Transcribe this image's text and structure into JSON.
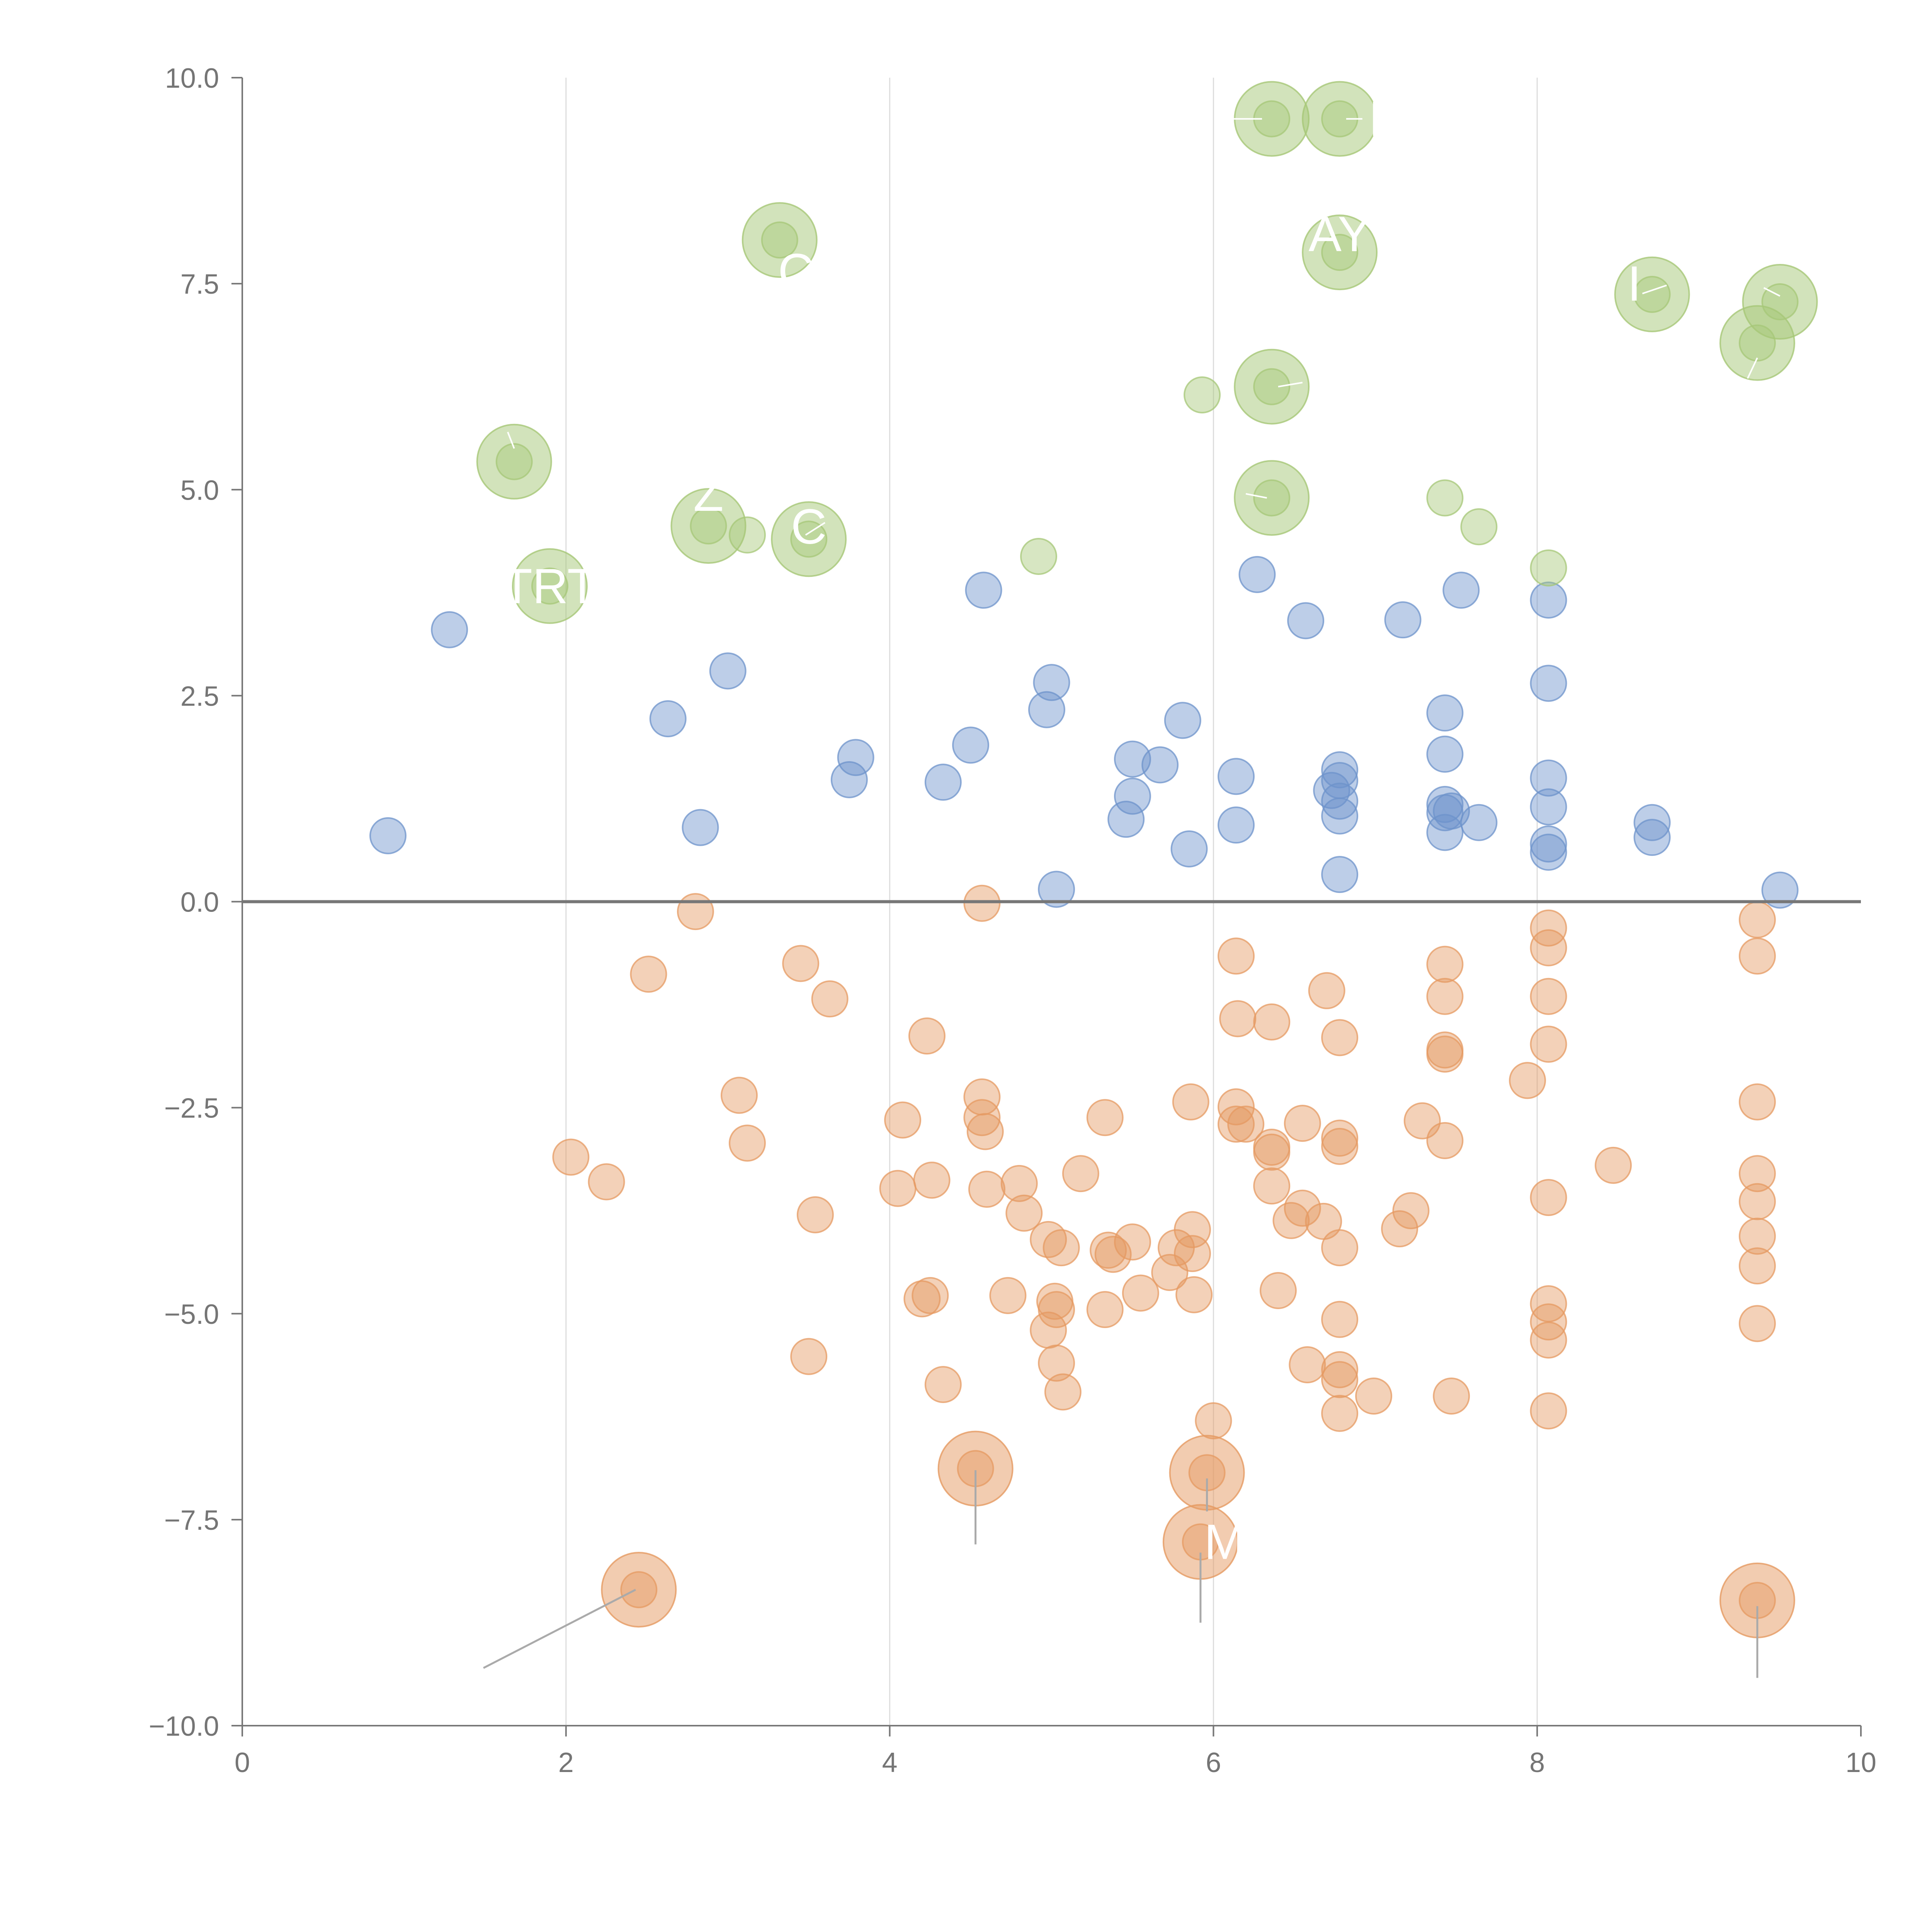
{
  "chart_data": {
    "type": "scatter",
    "title": "",
    "xlabel": "",
    "ylabel": "",
    "xlim": [
      0,
      10
    ],
    "ylim": [
      -10,
      10
    ],
    "x_ticks": [
      "0",
      "2",
      "4",
      "6",
      "8",
      "10"
    ],
    "y_ticks": [
      "−10.0",
      "−7.5",
      "−5.0",
      "−2.5",
      "0.0",
      "2.5",
      "5.0",
      "7.5",
      "10.0"
    ],
    "x_tick_values": [
      0,
      2,
      4,
      6,
      8,
      10
    ],
    "y_tick_values": [
      -10,
      -7.5,
      -5,
      -2.5,
      0,
      2.5,
      5,
      7.5,
      10
    ],
    "grid": "vertical lines at x ticks",
    "reference_line": {
      "y": 0
    },
    "legend": "none",
    "colors": {
      "blue": "#6d93cb",
      "green": "#a6c777",
      "orange": "#e59a61"
    },
    "series": [
      {
        "color": "blue",
        "points": [
          [
            0.9,
            0.8
          ],
          [
            1.28,
            3.3
          ],
          [
            2.63,
            2.22
          ],
          [
            2.83,
            0.9
          ],
          [
            3.0,
            2.8
          ],
          [
            3.75,
            1.48
          ],
          [
            3.79,
            1.75
          ],
          [
            4.33,
            1.45
          ],
          [
            4.5,
            1.9
          ],
          [
            4.58,
            3.78
          ],
          [
            4.97,
            2.33
          ],
          [
            5.0,
            2.66
          ],
          [
            5.03,
            0.15
          ],
          [
            5.46,
            1.0
          ],
          [
            5.5,
            1.28
          ],
          [
            5.5,
            1.73
          ],
          [
            5.67,
            1.66
          ],
          [
            5.81,
            2.2
          ],
          [
            5.85,
            0.64
          ],
          [
            6.14,
            1.52
          ],
          [
            6.14,
            0.93
          ],
          [
            6.27,
            3.97
          ],
          [
            6.57,
            3.41
          ],
          [
            6.73,
            1.35
          ],
          [
            6.78,
            1.6
          ],
          [
            6.78,
            1.47
          ],
          [
            6.78,
            1.22
          ],
          [
            6.78,
            1.04
          ],
          [
            6.78,
            0.33
          ],
          [
            7.17,
            3.42
          ],
          [
            7.43,
            2.29
          ],
          [
            7.43,
            1.79
          ],
          [
            7.43,
            1.18
          ],
          [
            7.43,
            1.08
          ],
          [
            7.43,
            0.84
          ],
          [
            7.47,
            1.1
          ],
          [
            7.53,
            3.78
          ],
          [
            7.64,
            0.96
          ],
          [
            8.07,
            3.66
          ],
          [
            8.07,
            2.65
          ],
          [
            8.07,
            1.5
          ],
          [
            8.07,
            1.15
          ],
          [
            8.07,
            0.7
          ],
          [
            8.07,
            0.6
          ],
          [
            8.71,
            0.96
          ],
          [
            8.71,
            0.78
          ],
          [
            9.5,
            0.14
          ]
        ]
      },
      {
        "color": "green",
        "points": [
          [
            1.68,
            5.34
          ],
          [
            1.9,
            3.83
          ],
          [
            2.88,
            4.56
          ],
          [
            3.12,
            4.45
          ],
          [
            3.32,
            8.03
          ],
          [
            3.5,
            4.4
          ],
          [
            4.92,
            4.19
          ],
          [
            5.93,
            6.15
          ],
          [
            6.36,
            9.5
          ],
          [
            6.36,
            6.25
          ],
          [
            6.36,
            4.9
          ],
          [
            6.78,
            9.5
          ],
          [
            6.78,
            7.88
          ],
          [
            7.43,
            4.9
          ],
          [
            7.64,
            4.55
          ],
          [
            8.07,
            4.05
          ],
          [
            8.71,
            7.37
          ],
          [
            9.36,
            6.78
          ],
          [
            9.5,
            7.28
          ]
        ]
      },
      {
        "color": "orange",
        "points": [
          [
            2.03,
            -3.1
          ],
          [
            2.25,
            -3.4
          ],
          [
            2.51,
            -0.88
          ],
          [
            2.45,
            -8.35
          ],
          [
            2.8,
            -0.12
          ],
          [
            3.07,
            -2.35
          ],
          [
            3.12,
            -2.93
          ],
          [
            3.45,
            -0.75
          ],
          [
            3.5,
            -5.52
          ],
          [
            3.54,
            -3.8
          ],
          [
            3.63,
            -1.18
          ],
          [
            4.05,
            -3.48
          ],
          [
            4.08,
            -2.65
          ],
          [
            4.2,
            -4.82
          ],
          [
            4.23,
            -1.63
          ],
          [
            4.25,
            -4.78
          ],
          [
            4.26,
            -3.38
          ],
          [
            4.33,
            -5.86
          ],
          [
            4.53,
            -6.88
          ],
          [
            4.57,
            -0.02
          ],
          [
            4.57,
            -2.37
          ],
          [
            4.57,
            -2.62
          ],
          [
            4.59,
            -2.79
          ],
          [
            4.6,
            -3.49
          ],
          [
            4.73,
            -4.78
          ],
          [
            4.8,
            -3.42
          ],
          [
            4.83,
            -3.78
          ],
          [
            4.98,
            -4.1
          ],
          [
            4.98,
            -5.2
          ],
          [
            5.02,
            -4.85
          ],
          [
            5.03,
            -4.95
          ],
          [
            5.03,
            -5.6
          ],
          [
            5.06,
            -4.2
          ],
          [
            5.07,
            -5.95
          ],
          [
            5.18,
            -3.3
          ],
          [
            5.33,
            -2.62
          ],
          [
            5.33,
            -4.95
          ],
          [
            5.35,
            -4.23
          ],
          [
            5.38,
            -4.28
          ],
          [
            5.5,
            -4.13
          ],
          [
            5.55,
            -4.75
          ],
          [
            5.73,
            -4.5
          ],
          [
            5.77,
            -4.2
          ],
          [
            5.86,
            -2.43
          ],
          [
            5.87,
            -3.98
          ],
          [
            5.87,
            -4.27
          ],
          [
            5.88,
            -4.77
          ],
          [
            5.92,
            -7.77
          ],
          [
            5.96,
            -6.93
          ],
          [
            6.0,
            -6.3
          ],
          [
            6.14,
            -0.66
          ],
          [
            6.14,
            -2.49
          ],
          [
            6.14,
            -2.7
          ],
          [
            6.15,
            -1.42
          ],
          [
            6.2,
            -2.7
          ],
          [
            6.36,
            -1.46
          ],
          [
            6.36,
            -2.98
          ],
          [
            6.36,
            -3.04
          ],
          [
            6.36,
            -3.45
          ],
          [
            6.4,
            -4.72
          ],
          [
            6.48,
            -3.87
          ],
          [
            6.55,
            -2.69
          ],
          [
            6.55,
            -3.72
          ],
          [
            6.58,
            -5.62
          ],
          [
            6.68,
            -3.88
          ],
          [
            6.7,
            -1.08
          ],
          [
            6.78,
            -1.65
          ],
          [
            6.78,
            -2.87
          ],
          [
            6.78,
            -2.97
          ],
          [
            6.78,
            -4.2
          ],
          [
            6.78,
            -5.07
          ],
          [
            6.78,
            -5.68
          ],
          [
            6.78,
            -5.8
          ],
          [
            6.78,
            -6.21
          ],
          [
            6.99,
            -6.0
          ],
          [
            7.15,
            -3.97
          ],
          [
            7.22,
            -3.75
          ],
          [
            7.29,
            -2.66
          ],
          [
            7.43,
            -0.76
          ],
          [
            7.43,
            -1.15
          ],
          [
            7.43,
            -1.8
          ],
          [
            7.43,
            -1.85
          ],
          [
            7.43,
            -2.9
          ],
          [
            7.47,
            -6.0
          ],
          [
            7.94,
            -2.17
          ],
          [
            8.07,
            -0.32
          ],
          [
            8.07,
            -0.56
          ],
          [
            8.07,
            -1.15
          ],
          [
            8.07,
            -1.73
          ],
          [
            8.07,
            -3.59
          ],
          [
            8.07,
            -4.88
          ],
          [
            8.07,
            -5.1
          ],
          [
            8.07,
            -5.32
          ],
          [
            8.07,
            -6.18
          ],
          [
            8.47,
            -3.2
          ],
          [
            9.36,
            -0.22
          ],
          [
            9.36,
            -0.66
          ],
          [
            9.36,
            -2.43
          ],
          [
            9.36,
            -3.3
          ],
          [
            9.36,
            -3.64
          ],
          [
            9.36,
            -4.06
          ],
          [
            9.36,
            -4.42
          ],
          [
            9.36,
            -5.12
          ],
          [
            9.36,
            -8.48
          ]
        ]
      }
    ],
    "annotations": [
      {
        "text": "TRT",
        "x": 1.9,
        "y": 3.83
      },
      {
        "text": "Z",
        "x": 2.88,
        "y": 4.95
      },
      {
        "text": "C",
        "x": 3.5,
        "y": 4.55
      },
      {
        "text": "C",
        "x": 3.42,
        "y": 7.65
      },
      {
        "text": "AY",
        "x": 6.78,
        "y": 8.1
      },
      {
        "text": "I",
        "x": 8.6,
        "y": 7.5
      },
      {
        "text": "I",
        "x": 7.0,
        "y": 9.5
      },
      {
        "text": "M",
        "x": 6.07,
        "y": -7.77
      }
    ]
  }
}
